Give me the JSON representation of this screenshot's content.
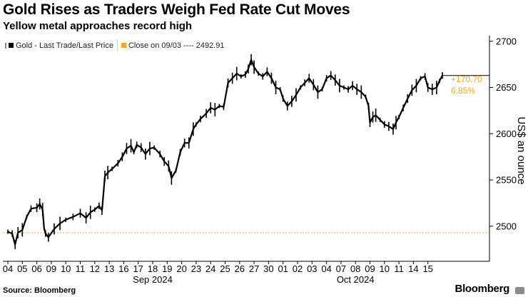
{
  "chart_data": {
    "type": "line",
    "title": "Gold Rises as Traders Weigh Fed Rate Cut Moves",
    "subtitle": "Yellow metal approaches record high",
    "ylabel": "US$ an ounce",
    "ylim": [
      2462,
      2706
    ],
    "yticks": [
      2500,
      2550,
      2600,
      2650,
      2700
    ],
    "x_tick_labels": [
      "04",
      "05",
      "06",
      "09",
      "10",
      "11",
      "12",
      "13",
      "16",
      "17",
      "18",
      "19",
      "20",
      "23",
      "24",
      "25",
      "26",
      "27",
      "30",
      "01",
      "02",
      "03",
      "04",
      "07",
      "08",
      "09",
      "10",
      "11",
      "14",
      "15"
    ],
    "x_group_labels": [
      {
        "label": "Sep 2024",
        "under": "18"
      },
      {
        "label": "Oct 2024",
        "under": "08"
      }
    ],
    "reference_line": {
      "value": 2492.91,
      "color": "#f5a623"
    },
    "series": [
      {
        "name": "Gold - Last Trade/Last Price",
        "color": "#000000",
        "values": [
          [
            0,
            2494
          ],
          [
            0.3,
            2492
          ],
          [
            0.5,
            2480
          ],
          [
            0.7,
            2493
          ],
          [
            1.0,
            2496
          ],
          [
            1.3,
            2510
          ],
          [
            1.6,
            2519
          ],
          [
            2.0,
            2520
          ],
          [
            2.2,
            2524
          ],
          [
            2.4,
            2518
          ],
          [
            2.5,
            2498
          ],
          [
            2.6,
            2492
          ],
          [
            2.8,
            2488
          ],
          [
            3.2,
            2497
          ],
          [
            3.6,
            2503
          ],
          [
            4.0,
            2507
          ],
          [
            4.5,
            2510
          ],
          [
            5.0,
            2514
          ],
          [
            5.4,
            2509
          ],
          [
            5.7,
            2515
          ],
          [
            6.0,
            2518
          ],
          [
            6.3,
            2522
          ],
          [
            6.5,
            2517
          ],
          [
            6.7,
            2554
          ],
          [
            6.9,
            2558
          ],
          [
            7.2,
            2562
          ],
          [
            7.6,
            2568
          ],
          [
            7.9,
            2575
          ],
          [
            8.2,
            2584
          ],
          [
            8.5,
            2587
          ],
          [
            8.7,
            2580
          ],
          [
            8.9,
            2588
          ],
          [
            9.2,
            2585
          ],
          [
            9.5,
            2578
          ],
          [
            9.8,
            2584
          ],
          [
            10.1,
            2585
          ],
          [
            10.5,
            2578
          ],
          [
            10.8,
            2570
          ],
          [
            11.1,
            2565
          ],
          [
            11.3,
            2552
          ],
          [
            11.6,
            2560
          ],
          [
            11.9,
            2580
          ],
          [
            12.2,
            2590
          ],
          [
            12.5,
            2590
          ],
          [
            12.8,
            2605
          ],
          [
            13.0,
            2610
          ],
          [
            13.3,
            2616
          ],
          [
            13.7,
            2622
          ],
          [
            14.0,
            2628
          ],
          [
            14.3,
            2626
          ],
          [
            14.6,
            2630
          ],
          [
            14.9,
            2629
          ],
          [
            15.2,
            2655
          ],
          [
            15.5,
            2660
          ],
          [
            15.8,
            2665
          ],
          [
            16.1,
            2662
          ],
          [
            16.4,
            2664
          ],
          [
            16.6,
            2670
          ],
          [
            16.8,
            2680
          ],
          [
            17.0,
            2672
          ],
          [
            17.3,
            2665
          ],
          [
            17.6,
            2662
          ],
          [
            17.9,
            2667
          ],
          [
            18.2,
            2660
          ],
          [
            18.5,
            2650
          ],
          [
            18.8,
            2648
          ],
          [
            19.0,
            2638
          ],
          [
            19.3,
            2630
          ],
          [
            19.6,
            2635
          ],
          [
            19.9,
            2642
          ],
          [
            20.2,
            2650
          ],
          [
            20.5,
            2655
          ],
          [
            20.8,
            2660
          ],
          [
            21.1,
            2653
          ],
          [
            21.4,
            2645
          ],
          [
            21.7,
            2648
          ],
          [
            22.0,
            2660
          ],
          [
            22.3,
            2663
          ],
          [
            22.6,
            2658
          ],
          [
            22.9,
            2652
          ],
          [
            23.2,
            2650
          ],
          [
            23.5,
            2648
          ],
          [
            23.8,
            2652
          ],
          [
            24.1,
            2648
          ],
          [
            24.4,
            2645
          ],
          [
            24.7,
            2640
          ],
          [
            24.9,
            2630
          ],
          [
            25.0,
            2612
          ],
          [
            25.2,
            2618
          ],
          [
            25.4,
            2620
          ],
          [
            25.7,
            2615
          ],
          [
            26.0,
            2610
          ],
          [
            26.3,
            2608
          ],
          [
            26.6,
            2605
          ],
          [
            26.8,
            2612
          ],
          [
            27.0,
            2618
          ],
          [
            27.3,
            2628
          ],
          [
            27.6,
            2638
          ],
          [
            27.9,
            2647
          ],
          [
            28.2,
            2652
          ],
          [
            28.5,
            2660
          ],
          [
            28.8,
            2662
          ],
          [
            29.0,
            2650
          ],
          [
            29.3,
            2648
          ],
          [
            29.6,
            2650
          ],
          [
            29.8,
            2657
          ],
          [
            30.0,
            2663
          ]
        ]
      },
      {
        "name": "Close on 09/03 ---- 2492.91",
        "color": "#f5a623",
        "values": [
          [
            0,
            2492.91
          ],
          [
            30,
            2492.91
          ]
        ]
      }
    ],
    "annotation": {
      "change": "+170.70",
      "percent": "6.85%",
      "color": "#f5a623"
    },
    "legend_placement": "top-left",
    "grid": false
  },
  "source": "Source: Bloomberg",
  "brand": "Bloomberg"
}
